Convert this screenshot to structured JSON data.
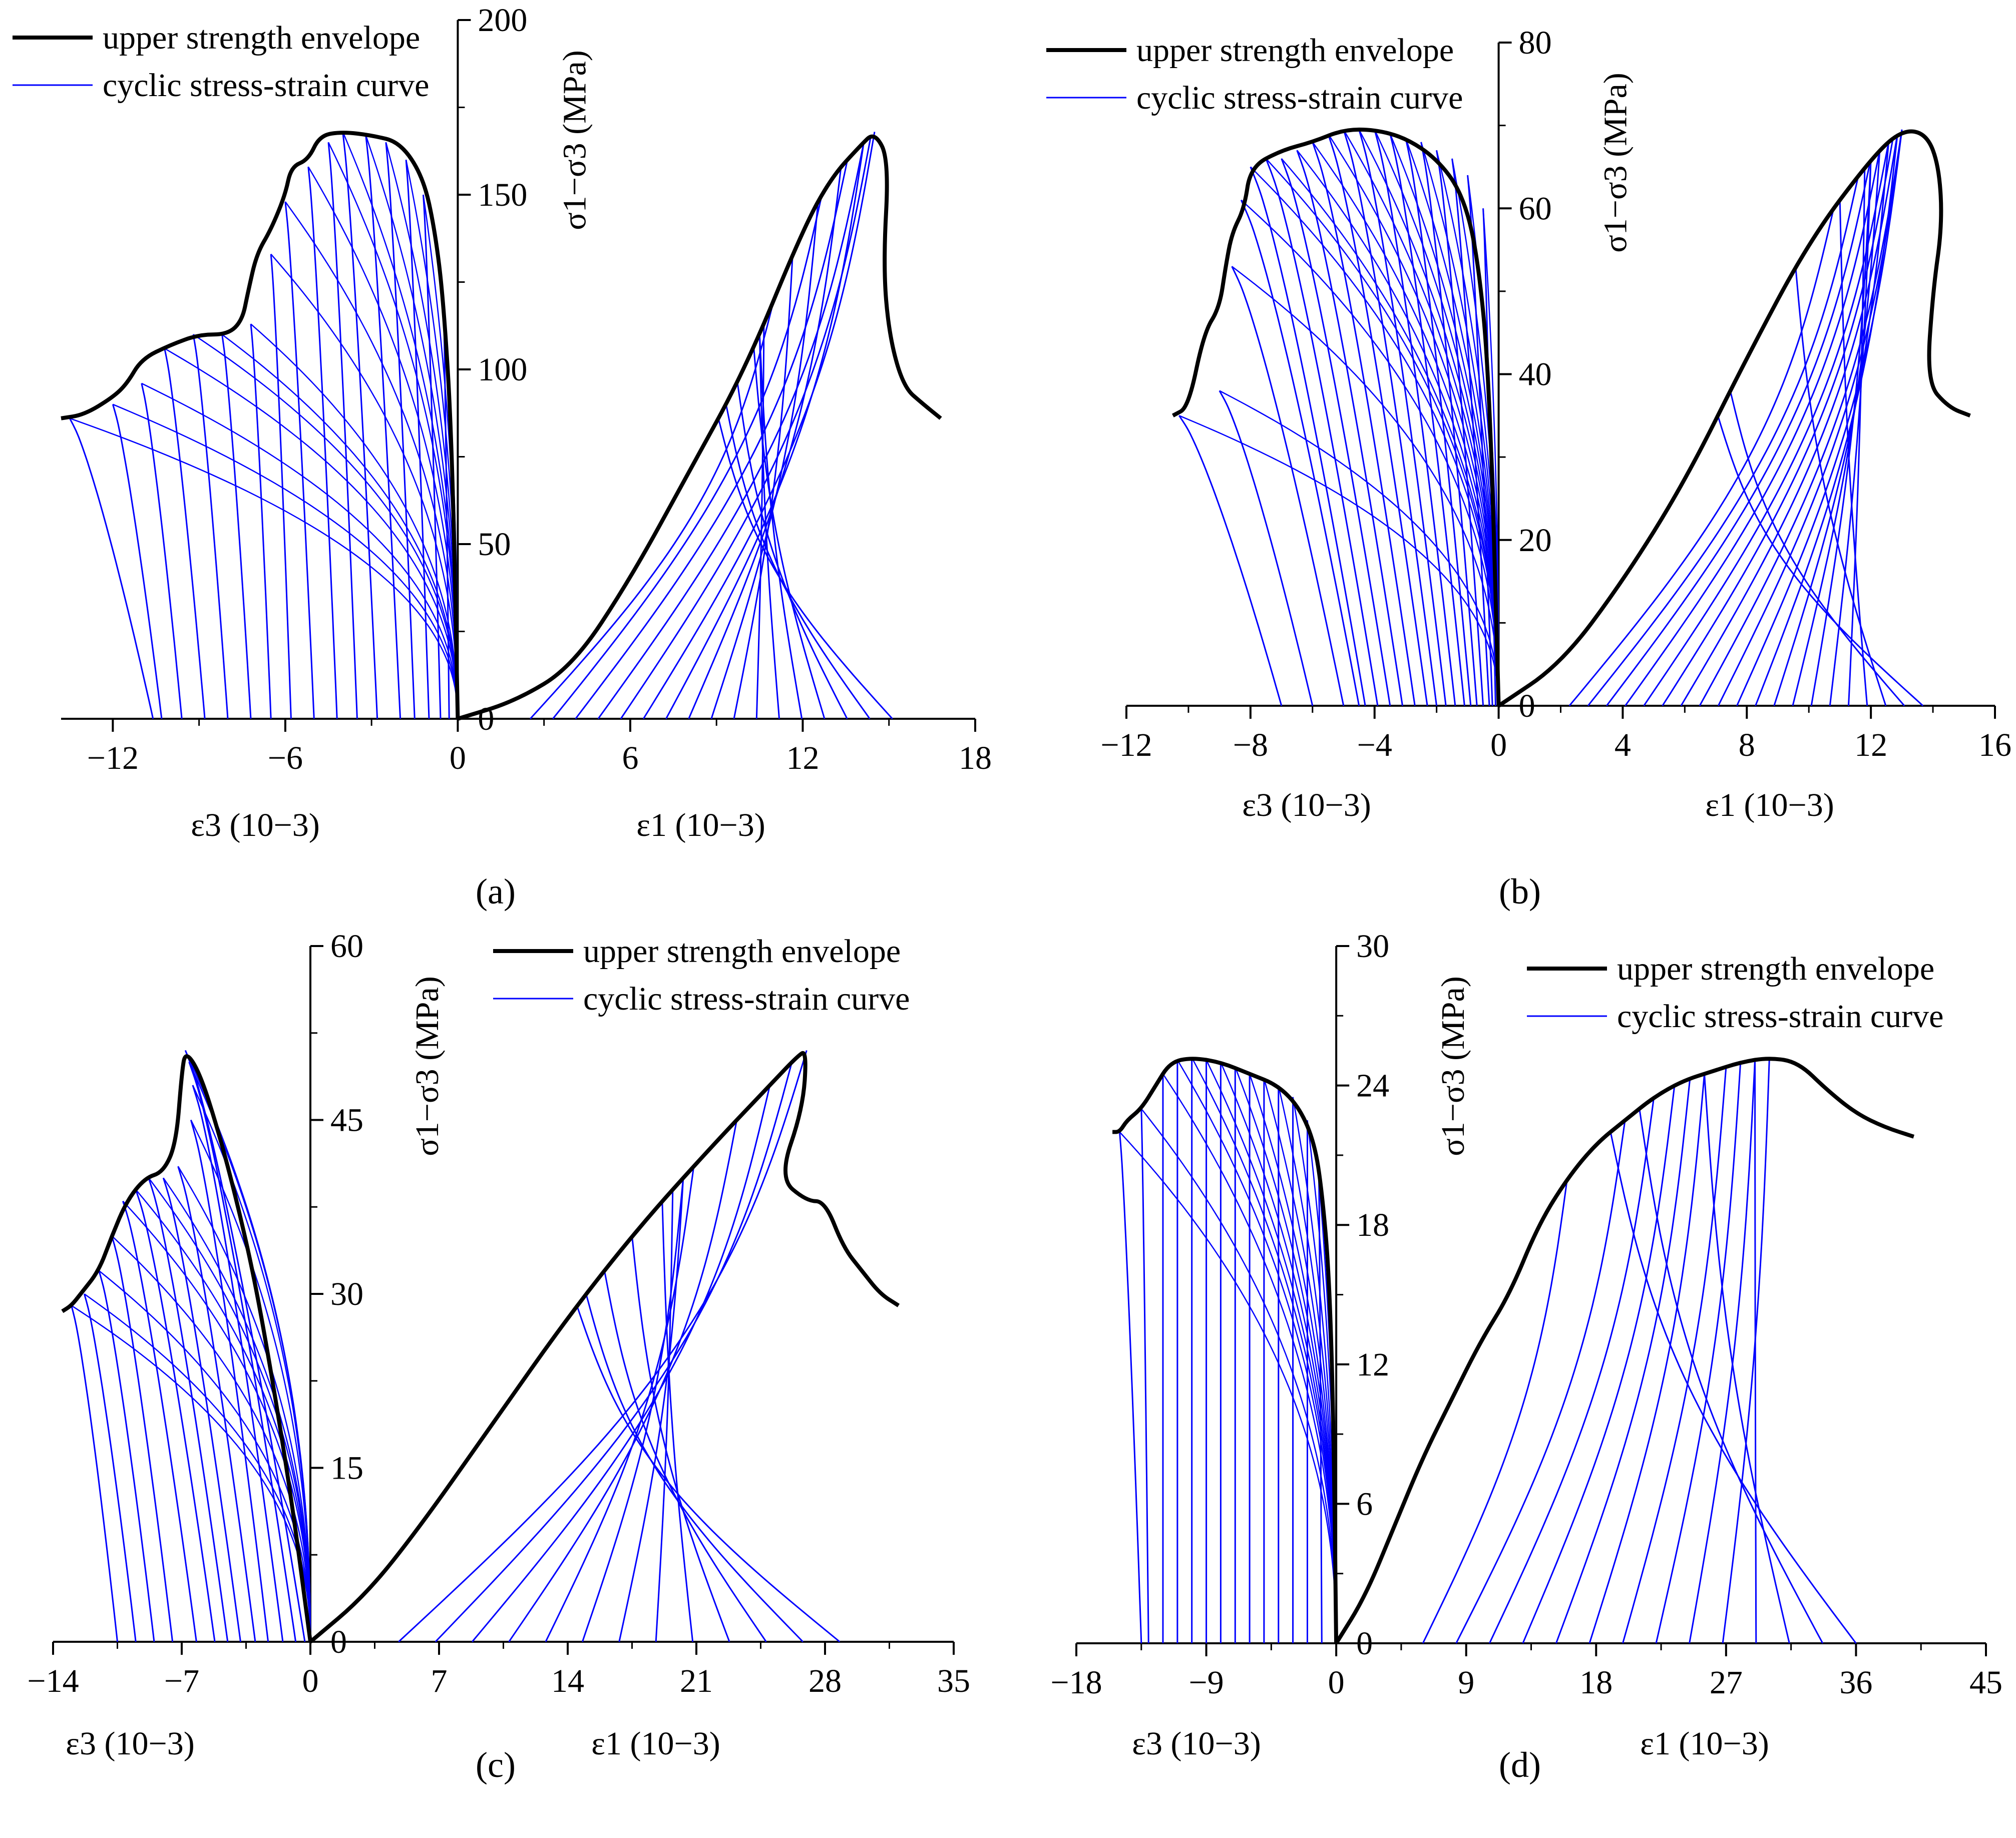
{
  "colors": {
    "envelope": "#000000",
    "curve": "#0000FF",
    "background": "#FFFFFF"
  },
  "legend": {
    "envelope": "upper strength envelope",
    "cyclic": "cyclic stress-strain curve"
  },
  "chart_data": [
    {
      "panel": "(a)",
      "type": "line",
      "ylabel": "σ1−σ3 (MPa)",
      "xlabel_left": "ε3 (10−3)",
      "xlabel_right": "ε1 (10−3)",
      "xlim": [
        -13.8,
        18
      ],
      "ylim": [
        0,
        200
      ],
      "xticks": [
        -12,
        -6,
        0,
        6,
        12,
        18
      ],
      "yticks": [
        0,
        50,
        100,
        150,
        200
      ],
      "legend_position": "top-left",
      "envelope_eps3": [
        [
          0,
          0
        ],
        [
          -0.2,
          80
        ],
        [
          -0.5,
          120
        ],
        [
          -0.8,
          140
        ],
        [
          -1.2,
          155
        ],
        [
          -2.0,
          165
        ],
        [
          -3.0,
          167
        ],
        [
          -4.0,
          168
        ],
        [
          -4.8,
          167
        ],
        [
          -5.2,
          160
        ],
        [
          -5.8,
          158
        ],
        [
          -6.0,
          150
        ],
        [
          -6.5,
          140
        ],
        [
          -7.0,
          133
        ],
        [
          -7.3,
          122
        ],
        [
          -7.5,
          114
        ],
        [
          -8.0,
          110
        ],
        [
          -9.0,
          110
        ],
        [
          -10.0,
          107
        ],
        [
          -11.0,
          103
        ],
        [
          -11.5,
          96
        ],
        [
          -12.0,
          92
        ],
        [
          -13.0,
          87
        ],
        [
          -13.8,
          86
        ]
      ],
      "envelope_eps1": [
        [
          0,
          0
        ],
        [
          2,
          5
        ],
        [
          4,
          15
        ],
        [
          6,
          40
        ],
        [
          8,
          70
        ],
        [
          10,
          100
        ],
        [
          12,
          140
        ],
        [
          13,
          155
        ],
        [
          14,
          164
        ],
        [
          14.5,
          168
        ],
        [
          15,
          160
        ],
        [
          14.8,
          130
        ],
        [
          15.0,
          110
        ],
        [
          15.5,
          95
        ],
        [
          16.2,
          90
        ],
        [
          16.8,
          86
        ]
      ],
      "loop_peaks_eps3": [
        [
          -0.5,
          120
        ],
        [
          -1.2,
          150
        ],
        [
          -1.8,
          160
        ],
        [
          -2.5,
          165
        ],
        [
          -3.2,
          167
        ],
        [
          -4.0,
          168
        ],
        [
          -4.5,
          165
        ],
        [
          -5.2,
          158
        ],
        [
          -6.0,
          148
        ],
        [
          -6.5,
          133
        ],
        [
          -7.2,
          113
        ],
        [
          -8.2,
          110
        ],
        [
          -9.2,
          110
        ],
        [
          -10.2,
          106
        ],
        [
          -11.0,
          96
        ],
        [
          -12.0,
          90
        ],
        [
          -13.5,
          86
        ]
      ],
      "loop_residual_eps3": [
        -0.3,
        -0.6,
        -1.0,
        -1.5,
        -2.0,
        -2.8,
        -3.5,
        -4.2,
        -5.0,
        -5.8,
        -6.5,
        -7.2,
        -8.0,
        -8.8,
        -9.6,
        -10.3,
        -10.6
      ]
    },
    {
      "panel": "(b)",
      "type": "line",
      "ylabel": "σ1−σ3 (MPa)",
      "xlabel_left": "ε3 (10−3)",
      "xlabel_right": "ε1 (10−3)",
      "xlim": [
        -12,
        16
      ],
      "ylim": [
        0,
        80
      ],
      "xticks": [
        -12,
        -8,
        -4,
        0,
        4,
        8,
        12,
        16
      ],
      "yticks": [
        0,
        20,
        40,
        60,
        80
      ],
      "legend_position": "top-left",
      "envelope_eps3": [
        [
          0,
          0
        ],
        [
          -0.3,
          40
        ],
        [
          -0.7,
          55
        ],
        [
          -1.2,
          62
        ],
        [
          -2.0,
          66
        ],
        [
          -3.0,
          68.5
        ],
        [
          -4.0,
          69.5
        ],
        [
          -5.0,
          69.5
        ],
        [
          -6.0,
          68
        ],
        [
          -7.0,
          67
        ],
        [
          -8.0,
          65
        ],
        [
          -8.2,
          60
        ],
        [
          -8.6,
          57
        ],
        [
          -8.8,
          53
        ],
        [
          -9.0,
          48
        ],
        [
          -9.5,
          45
        ],
        [
          -10.0,
          36
        ],
        [
          -10.5,
          35
        ]
      ],
      "envelope_eps1": [
        [
          0,
          0
        ],
        [
          2,
          5
        ],
        [
          4,
          15
        ],
        [
          6,
          27
        ],
        [
          8,
          42
        ],
        [
          10,
          56
        ],
        [
          12,
          66
        ],
        [
          13,
          69.5
        ],
        [
          13.8,
          69
        ],
        [
          14.2,
          65
        ],
        [
          14.3,
          58
        ],
        [
          14.0,
          50
        ],
        [
          13.8,
          39
        ],
        [
          14.5,
          36
        ],
        [
          15.2,
          35
        ]
      ],
      "loop_peaks_eps3": [
        [
          -0.5,
          60
        ],
        [
          -1.0,
          64
        ],
        [
          -1.5,
          66
        ],
        [
          -2.0,
          67
        ],
        [
          -2.5,
          68
        ],
        [
          -3.0,
          68.5
        ],
        [
          -3.5,
          69
        ],
        [
          -4.0,
          69.5
        ],
        [
          -4.5,
          69.5
        ],
        [
          -5.0,
          69.5
        ],
        [
          -5.5,
          69
        ],
        [
          -6.0,
          68
        ],
        [
          -6.5,
          67
        ],
        [
          -7.0,
          66
        ],
        [
          -7.5,
          66
        ],
        [
          -8.0,
          65
        ],
        [
          -8.3,
          61
        ],
        [
          -8.6,
          53
        ],
        [
          -9.0,
          38
        ],
        [
          -10.3,
          35
        ]
      ],
      "loop_residual_eps3": [
        -0.1,
        -0.2,
        -0.3,
        -0.5,
        -0.7,
        -0.9,
        -1.1,
        -1.4,
        -1.7,
        -2.0,
        -2.3,
        -2.7,
        -3.1,
        -3.5,
        -3.9,
        -4.3,
        -4.5,
        -5.0,
        -6.0,
        -7.0
      ]
    },
    {
      "panel": "(c)",
      "type": "line",
      "ylabel": "σ1−σ3 (MPa)",
      "xlabel_left": "ε3 (10−3)",
      "xlabel_right": "ε1 (10−3)",
      "xlim": [
        -14,
        35
      ],
      "ylim": [
        0,
        60
      ],
      "xticks": [
        -14,
        -7,
        0,
        7,
        14,
        21,
        28,
        35
      ],
      "yticks": [
        0,
        15,
        30,
        45,
        60
      ],
      "legend_position": "top-right",
      "envelope_eps3": [
        [
          0,
          0
        ],
        [
          -1,
          12
        ],
        [
          -2,
          22
        ],
        [
          -3,
          31
        ],
        [
          -4,
          38
        ],
        [
          -5,
          44
        ],
        [
          -6,
          49
        ],
        [
          -6.8,
          51
        ],
        [
          -7.0,
          49
        ],
        [
          -7.3,
          43
        ],
        [
          -8.0,
          40.5
        ],
        [
          -9.0,
          40
        ],
        [
          -10.0,
          38
        ],
        [
          -10.8,
          35
        ],
        [
          -11.5,
          32
        ],
        [
          -12.5,
          30
        ],
        [
          -13.0,
          29
        ],
        [
          -13.5,
          28.5
        ]
      ],
      "envelope_eps1": [
        [
          0,
          0
        ],
        [
          3,
          4
        ],
        [
          6,
          10
        ],
        [
          10,
          19
        ],
        [
          14,
          28
        ],
        [
          18,
          36
        ],
        [
          22,
          43
        ],
        [
          25,
          48
        ],
        [
          26.5,
          50.5
        ],
        [
          27,
          51
        ],
        [
          26.8,
          46
        ],
        [
          25.5,
          40
        ],
        [
          27,
          38
        ],
        [
          28,
          38
        ],
        [
          29,
          34
        ],
        [
          30,
          32
        ],
        [
          31,
          30
        ],
        [
          32,
          29
        ]
      ],
      "loop_peaks_eps3": [
        [
          -6.8,
          51
        ],
        [
          -6.6,
          50
        ],
        [
          -6.4,
          48
        ],
        [
          -6.5,
          45
        ],
        [
          -7.2,
          41
        ],
        [
          -8.0,
          40
        ],
        [
          -8.8,
          40
        ],
        [
          -9.5,
          39
        ],
        [
          -10.2,
          38
        ],
        [
          -10.8,
          35
        ],
        [
          -11.5,
          32
        ],
        [
          -12.3,
          30
        ],
        [
          -13.0,
          29
        ]
      ],
      "loop_residual_eps3": [
        -0.3,
        -0.8,
        -1.5,
        -2.3,
        -3.0,
        -3.8,
        -4.5,
        -5.2,
        -6.2,
        -7.5,
        -8.5,
        -9.5,
        -10.5
      ]
    },
    {
      "panel": "(d)",
      "type": "line",
      "ylabel": "σ1−σ3 (MPa)",
      "xlabel_left": "ε3 (10−3)",
      "xlabel_right": "ε1 (10−3)",
      "xlim": [
        -18,
        45
      ],
      "ylim": [
        0,
        30
      ],
      "xticks": [
        -18,
        -9,
        0,
        9,
        18,
        27,
        36,
        45
      ],
      "yticks": [
        0,
        6,
        12,
        18,
        24,
        30
      ],
      "legend_position": "top-right",
      "envelope_eps3": [
        [
          0,
          0
        ],
        [
          -0.2,
          10
        ],
        [
          -0.5,
          16
        ],
        [
          -1.0,
          19.5
        ],
        [
          -1.5,
          21.5
        ],
        [
          -2.5,
          23
        ],
        [
          -4.0,
          24
        ],
        [
          -6.0,
          24.5
        ],
        [
          -8.0,
          25
        ],
        [
          -10.0,
          25.2
        ],
        [
          -11.5,
          25
        ],
        [
          -12.5,
          24
        ],
        [
          -13.5,
          23
        ],
        [
          -14.5,
          22.5
        ],
        [
          -15.0,
          22
        ],
        [
          -15.5,
          22
        ]
      ],
      "envelope_eps1": [
        [
          0,
          0
        ],
        [
          2,
          2
        ],
        [
          4,
          5
        ],
        [
          6,
          8
        ],
        [
          8,
          10.5
        ],
        [
          10,
          13
        ],
        [
          12,
          15
        ],
        [
          14,
          18
        ],
        [
          16,
          20
        ],
        [
          18,
          21.5
        ],
        [
          20,
          22.5
        ],
        [
          22,
          23.5
        ],
        [
          24,
          24.2
        ],
        [
          26,
          24.6
        ],
        [
          28,
          25
        ],
        [
          30,
          25.2
        ],
        [
          32,
          25
        ],
        [
          34,
          23.8
        ],
        [
          36,
          22.8
        ],
        [
          38,
          22.2
        ],
        [
          40,
          21.8
        ]
      ],
      "loop_peaks_eps3": [
        [
          -1.2,
          20
        ],
        [
          -2.0,
          22.5
        ],
        [
          -3.0,
          23.5
        ],
        [
          -4.0,
          24
        ],
        [
          -5.0,
          24.3
        ],
        [
          -6.0,
          24.5
        ],
        [
          -7.0,
          24.8
        ],
        [
          -8.0,
          25
        ],
        [
          -9.0,
          25.1
        ],
        [
          -10.0,
          25.2
        ],
        [
          -11.0,
          25.1
        ],
        [
          -12.0,
          24.5
        ],
        [
          -13.5,
          23
        ],
        [
          -15.0,
          22
        ]
      ],
      "loop_residual_eps3": [
        -1.0,
        -2.0,
        -3.0,
        -4.0,
        -5.0,
        -6.0,
        -7.0,
        -8.0,
        -9.0,
        -10.0,
        -11.0,
        -12.0,
        -13.0,
        -13.5
      ]
    }
  ]
}
